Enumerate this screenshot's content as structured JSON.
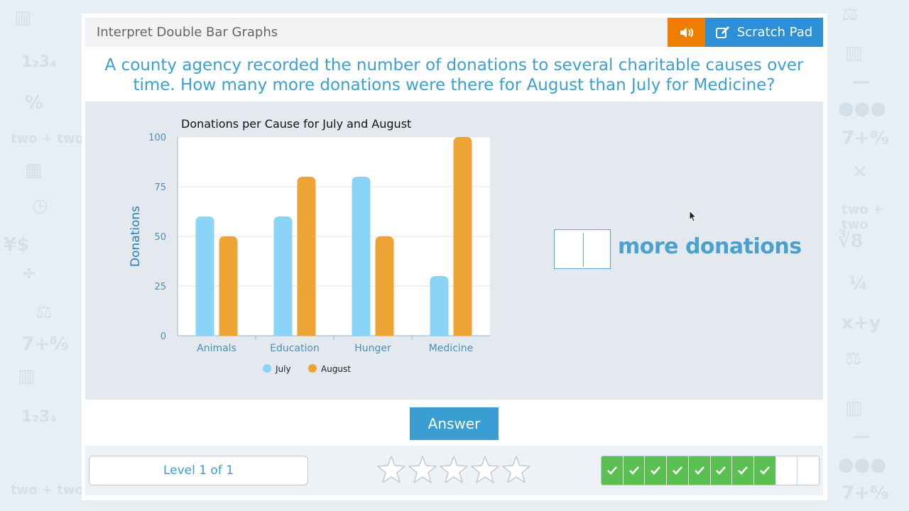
{
  "header": {
    "title": "Interpret Double Bar Graphs",
    "scratch_pad_label": "Scratch Pad",
    "sound_icon": "speaker-icon",
    "scratch_icon": "pencil-edit-icon"
  },
  "question": {
    "line1": "A county agency recorded the number of donations to several charitable causes over",
    "line2": "time. How many more donations were there for August than July for Medicine?"
  },
  "chart_data": {
    "type": "bar",
    "title": "Donations per Cause for July and August",
    "xlabel": "",
    "ylabel": "Donations",
    "categories": [
      "Animals",
      "Education",
      "Hunger",
      "Medicine"
    ],
    "series": [
      {
        "name": "July",
        "values": [
          60,
          60,
          80,
          30
        ],
        "color": "#8ad4f8"
      },
      {
        "name": "August",
        "values": [
          50,
          80,
          50,
          100
        ],
        "color": "#eea335"
      }
    ],
    "ylim": [
      0,
      100
    ],
    "yticks": [
      0,
      25,
      50,
      75,
      100
    ],
    "grid": true,
    "legend": "bottom"
  },
  "answer": {
    "input_value": "",
    "suffix": "more donations",
    "button_label": "Answer"
  },
  "footer": {
    "level_label": "Level 1 of 1",
    "stars_total": 5,
    "stars_filled": 0,
    "progress_total": 10,
    "progress_done": 8
  },
  "colors": {
    "accent": "#3a9ed2",
    "orange": "#ef7d00",
    "green": "#5cbf52"
  }
}
